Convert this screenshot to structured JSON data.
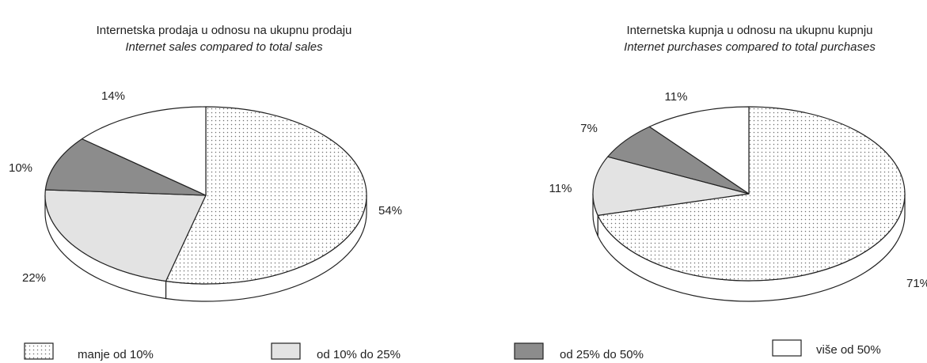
{
  "chart_data": [
    {
      "type": "pie",
      "title": "Internetska prodaja u odnosu na ukupnu prodaju",
      "subtitle": "Internet sales compared to total sales",
      "slices": [
        {
          "category": "manje od 10%",
          "value": 54,
          "label": "54%"
        },
        {
          "category": "od 10% do 25%",
          "value": 22,
          "label": "22%"
        },
        {
          "category": "od 25% do 50%",
          "value": 10,
          "label": "10%"
        },
        {
          "category": "više od 50%",
          "value": 14,
          "label": "14%"
        }
      ]
    },
    {
      "type": "pie",
      "title": "Internetska kupnja u odnosu na ukupnu kupnju",
      "subtitle": "Internet purchases compared to total purchases",
      "slices": [
        {
          "category": "manje od 10%",
          "value": 71,
          "label": "71%"
        },
        {
          "category": "od 10% do 25%",
          "value": 11,
          "label": "11%"
        },
        {
          "category": "od 25% do 50%",
          "value": 7,
          "label": "7%"
        },
        {
          "category": "više od 50%",
          "value": 11,
          "label": "11%"
        }
      ]
    }
  ],
  "legend": {
    "placement": "bottom",
    "items": [
      {
        "label": "manje od 10%",
        "fill": "dotted",
        "color": "#ffffff"
      },
      {
        "label": "od 10% do 25%",
        "fill": "solid",
        "color": "#e3e3e3"
      },
      {
        "label": "od 25% do 50%",
        "fill": "solid",
        "color": "#8c8c8c"
      },
      {
        "label": "više od 50%",
        "fill": "solid",
        "color": "#ffffff"
      }
    ]
  },
  "colors": {
    "outline": "#222222",
    "dots": "#6f6f6f",
    "side_face": "#ffffff"
  }
}
